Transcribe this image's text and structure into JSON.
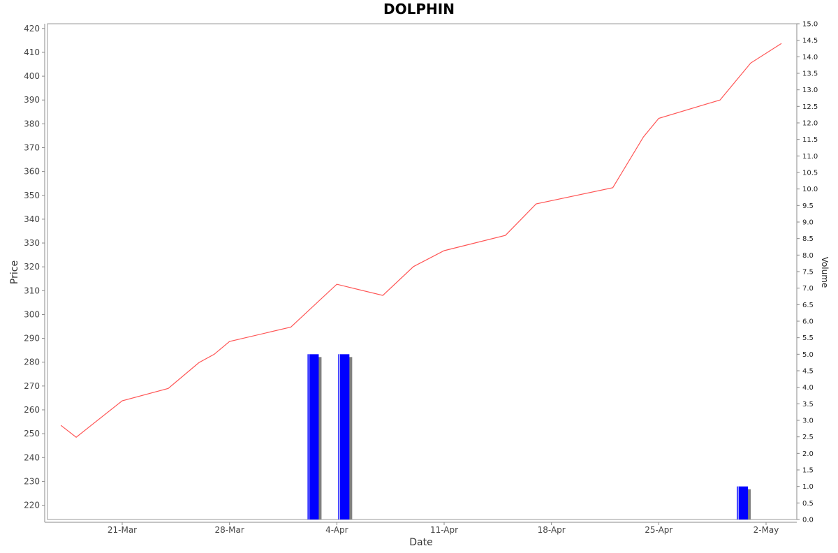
{
  "chart_data": {
    "type": "line",
    "title": "DOLPHIN",
    "xlabel": "Date",
    "ylabel": "Price",
    "y2label": "Volume",
    "x_tick_labels": [
      "21-Mar",
      "28-Mar",
      "4-Apr",
      "11-Apr",
      "18-Apr",
      "25-Apr",
      "2-May"
    ],
    "x_tick_days": [
      21,
      28,
      35,
      42,
      49,
      56,
      63
    ],
    "ylim": [
      214,
      422
    ],
    "y_ticks": [
      220,
      230,
      240,
      250,
      260,
      270,
      280,
      290,
      300,
      310,
      320,
      330,
      340,
      350,
      360,
      370,
      380,
      390,
      400,
      410,
      420
    ],
    "y2lim": [
      0,
      15
    ],
    "y2_ticks": [
      "0.0",
      "0.5",
      "1.0",
      "1.5",
      "2.0",
      "2.5",
      "3.0",
      "3.5",
      "4.0",
      "4.5",
      "5.0",
      "5.5",
      "6.0",
      "6.5",
      "7.0",
      "7.5",
      "8.0",
      "8.5",
      "9.0",
      "9.5",
      "10.0",
      "10.5",
      "11.0",
      "11.5",
      "12.0",
      "12.5",
      "13.0",
      "13.5",
      "14.0",
      "14.5",
      "15.0"
    ],
    "grid": false,
    "series": [
      {
        "type": "line",
        "axis": "left",
        "color": "#ff5555",
        "x": [
          "17-Mar",
          "18-Mar",
          "21-Mar",
          "24-Mar",
          "26-Mar",
          "27-Mar",
          "28-Mar",
          "1-Apr",
          "4-Apr",
          "7-Apr",
          "9-Apr",
          "11-Apr",
          "15-Apr",
          "17-Apr",
          "22-Apr",
          "24-Apr",
          "25-Apr",
          "29-Apr",
          "1-May",
          "3-May"
        ],
        "values": [
          253.5,
          248.5,
          263.8,
          269,
          279.8,
          283.3,
          288.7,
          294.7,
          312.7,
          308,
          320.1,
          326.8,
          333.2,
          346.4,
          353.2,
          374.5,
          382.3,
          390,
          405.5,
          413.7
        ]
      },
      {
        "type": "bar",
        "axis": "right",
        "color": "#0000ff",
        "x": [
          "2-Apr",
          "4-Apr",
          "30-Apr"
        ],
        "values": [
          5,
          5,
          1
        ]
      }
    ]
  }
}
